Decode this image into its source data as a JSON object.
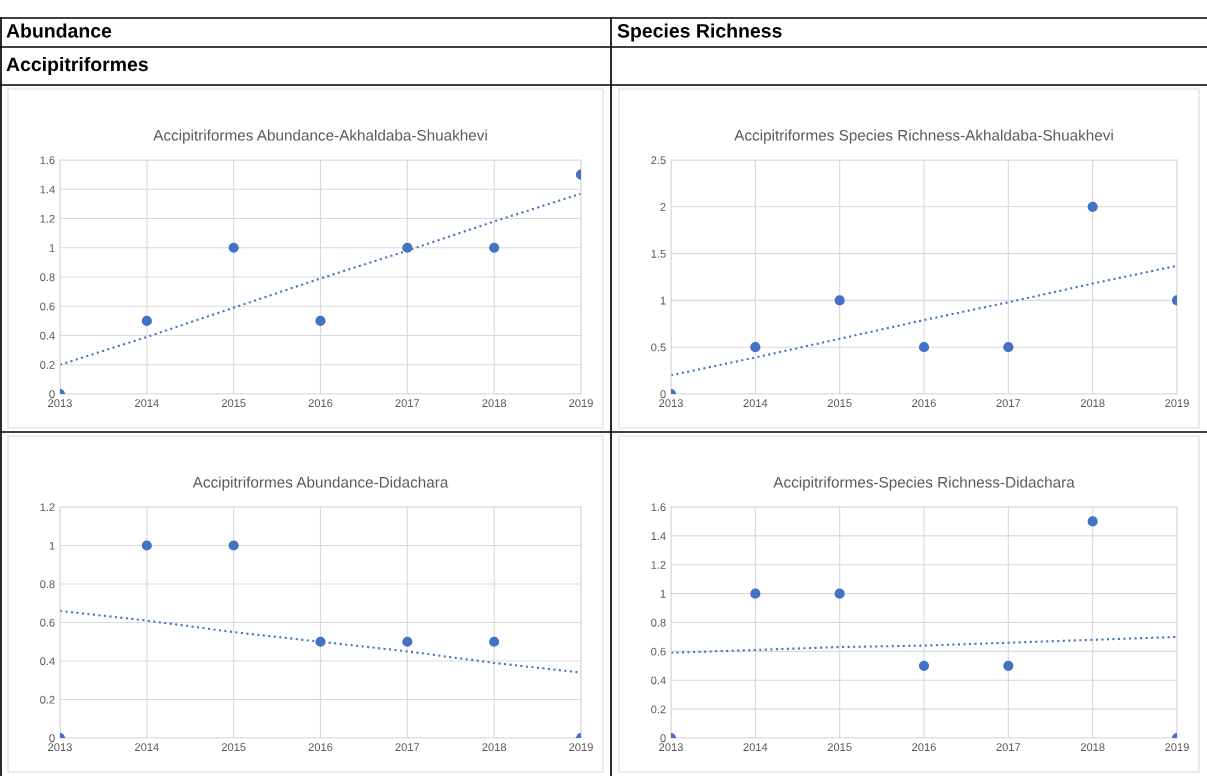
{
  "chart_data": [
    {
      "type": "scatter",
      "title": "Accipitriformes Abundance-Akhaldaba-Shuakhevi",
      "annotations": [
        "Abundance",
        "Accipitriformes"
      ],
      "x": [
        2013,
        2014,
        2015,
        2016,
        2017,
        2018,
        2019
      ],
      "series": [
        {
          "color": "#4472c4",
          "values": [
            0,
            0.5,
            1,
            0.5,
            1,
            1,
            1.5
          ],
          "marker": "circle"
        },
        {
          "type": "line",
          "color": "#4472c4",
          "values": [
            0.2,
            0.39,
            0.59,
            0.79,
            0.98,
            1.18,
            1.37
          ],
          "line_style": "dotted"
        }
      ],
      "xlim": [
        2013,
        2019
      ],
      "xticks": [
        2013,
        2014,
        2015,
        2016,
        2017,
        2018,
        2019
      ],
      "ylim": [
        0,
        1.6
      ],
      "yticks": [
        0,
        0.2,
        0.4,
        0.6,
        0.8,
        1,
        1.2,
        1.4,
        1.6
      ],
      "grid": "xy"
    },
    {
      "type": "scatter",
      "title": "Accipitriformes Species Richness-Akhaldaba-Shuakhevi",
      "annotations": [
        "Species Richness"
      ],
      "x": [
        2013,
        2014,
        2015,
        2016,
        2017,
        2018,
        2019
      ],
      "series": [
        {
          "color": "#4472c4",
          "values": [
            0,
            0.5,
            1,
            0.5,
            0.5,
            2,
            1
          ],
          "marker": "circle"
        },
        {
          "type": "line",
          "color": "#4472c4",
          "values": [
            0.2,
            0.39,
            0.59,
            0.79,
            0.98,
            1.18,
            1.37
          ],
          "line_style": "dotted"
        }
      ],
      "xlim": [
        2013,
        2019
      ],
      "xticks": [
        2013,
        2014,
        2015,
        2016,
        2017,
        2018,
        2019
      ],
      "ylim": [
        0,
        2.5
      ],
      "yticks": [
        0,
        0.5,
        1,
        1.5,
        2,
        2.5
      ],
      "grid": "xy"
    },
    {
      "type": "scatter",
      "title": "Accipitriformes Abundance-Didachara",
      "x": [
        2013,
        2014,
        2015,
        2016,
        2017,
        2018,
        2019
      ],
      "series": [
        {
          "color": "#4472c4",
          "values": [
            0,
            1,
            1,
            0.5,
            0.5,
            0.5,
            0
          ],
          "marker": "circle"
        },
        {
          "type": "line",
          "color": "#4472c4",
          "values": [
            0.66,
            0.61,
            0.55,
            0.5,
            0.45,
            0.39,
            0.34
          ],
          "line_style": "dotted"
        }
      ],
      "xlim": [
        2013,
        2019
      ],
      "xticks": [
        2013,
        2014,
        2015,
        2016,
        2017,
        2018,
        2019
      ],
      "ylim": [
        0,
        1.2
      ],
      "yticks": [
        0,
        0.2,
        0.4,
        0.6,
        0.8,
        1,
        1.2
      ],
      "grid": "xy"
    },
    {
      "type": "scatter",
      "title": "Accipitriformes-Species Richness-Didachara",
      "x": [
        2013,
        2014,
        2015,
        2016,
        2017,
        2018,
        2019
      ],
      "series": [
        {
          "color": "#4472c4",
          "values": [
            0,
            1,
            1,
            0.5,
            0.5,
            1.5,
            0
          ],
          "marker": "circle"
        },
        {
          "type": "line",
          "color": "#4472c4",
          "values": [
            0.59,
            0.61,
            0.63,
            0.64,
            0.66,
            0.68,
            0.7
          ],
          "line_style": "dotted"
        }
      ],
      "xlim": [
        2013,
        2019
      ],
      "xticks": [
        2013,
        2014,
        2015,
        2016,
        2017,
        2018,
        2019
      ],
      "ylim": [
        0,
        1.6
      ],
      "yticks": [
        0,
        0.2,
        0.4,
        0.6,
        0.8,
        1,
        1.2,
        1.4,
        1.6
      ],
      "grid": "xy"
    }
  ]
}
